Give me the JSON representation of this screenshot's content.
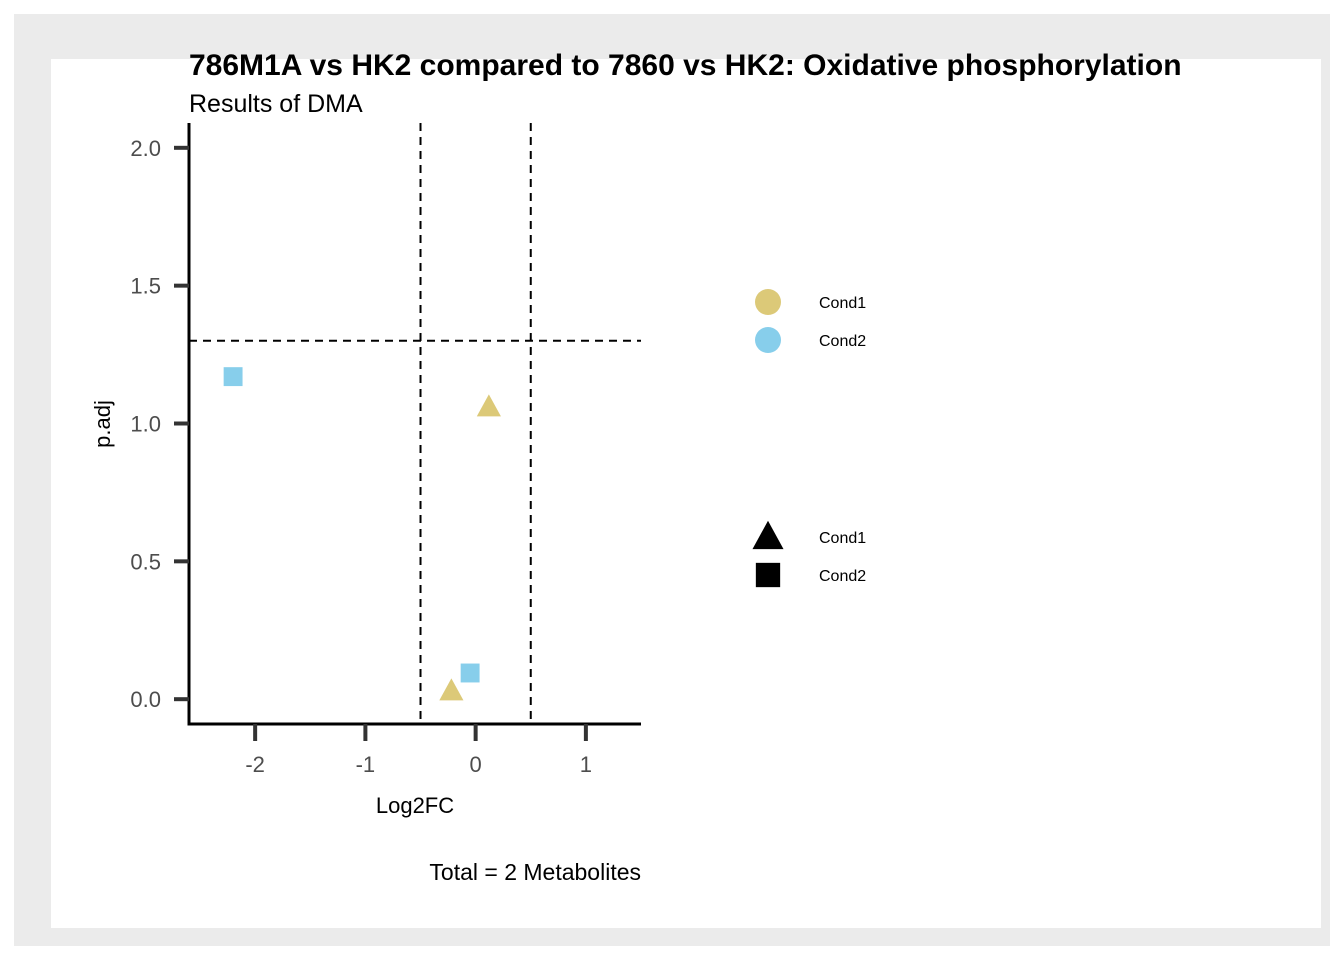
{
  "chart_data": {
    "type": "scatter",
    "title": "786M1A vs HK2 compared to 7860 vs HK2: Oxidative phosphorylation",
    "subtitle": "Results of DMA",
    "xlabel": "Log2FC",
    "ylabel": "p.adj",
    "caption": "Total = 2 Metabolites",
    "xlim": [
      -2.6,
      1.5
    ],
    "ylim": [
      -0.09,
      2.09
    ],
    "x_ticks": [
      -2,
      -1,
      0,
      1
    ],
    "x_tick_labels": [
      "-2",
      "-1",
      "0",
      "1"
    ],
    "y_ticks": [
      0.0,
      0.5,
      1.0,
      1.5,
      2.0
    ],
    "y_tick_labels": [
      "0.0",
      "0.5",
      "1.0",
      "1.5",
      "2.0"
    ],
    "reference_lines": {
      "vertical": [
        -0.5,
        0.5
      ],
      "horizontal": [
        1.3
      ],
      "style": "dashed"
    },
    "grid": false,
    "series": [
      {
        "name": "Cond1",
        "color": "#DCC978",
        "shape": "triangle",
        "points": [
          {
            "x": 0.12,
            "y": 1.06
          },
          {
            "x": -0.22,
            "y": 0.03
          }
        ]
      },
      {
        "name": "Cond2",
        "color": "#87CEEB",
        "shape": "square",
        "points": [
          {
            "x": -2.2,
            "y": 1.17
          },
          {
            "x": -0.05,
            "y": 0.095
          }
        ]
      }
    ],
    "legend": {
      "placement": "right",
      "color_entries": [
        {
          "label": "Cond1",
          "color": "#DCC978"
        },
        {
          "label": "Cond2",
          "color": "#87CEEB"
        }
      ],
      "shape_entries": [
        {
          "label": "Cond1",
          "shape": "triangle"
        },
        {
          "label": "Cond2",
          "shape": "square"
        }
      ]
    }
  }
}
